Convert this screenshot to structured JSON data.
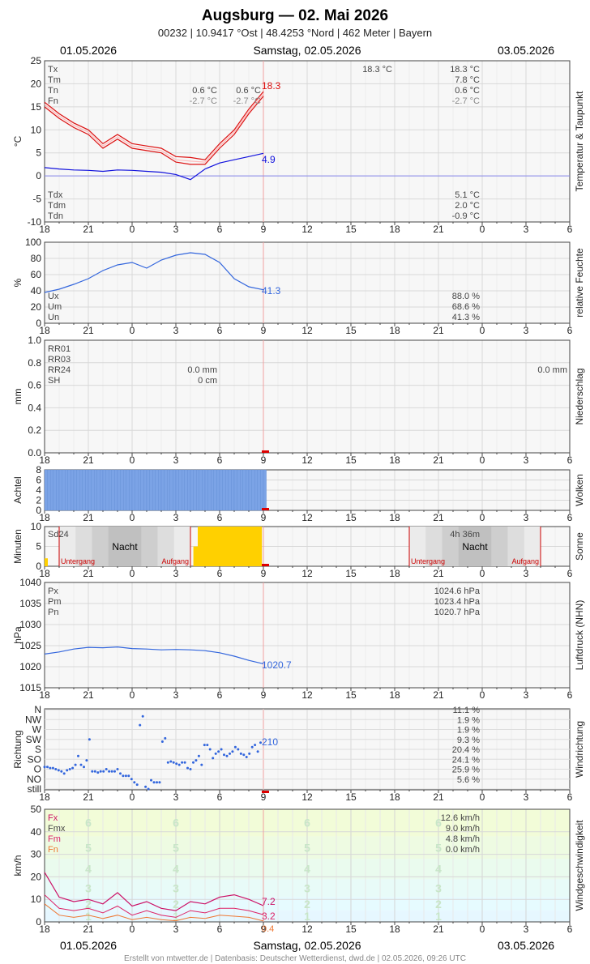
{
  "header": {
    "title": "Augsburg  —  02. Mai 2026",
    "subtitle": "00232  |  10.9417 °Ost  |  48.4253 °Nord  |  462 Meter  |  Bayern",
    "date_left": "01.05.2026",
    "date_center": "Samstag, 02.05.2026",
    "date_right": "03.05.2026"
  },
  "footer": "Erstellt von mtwetter.de | Datenbasis: Deutscher Wetterdienst, dwd.de | 02.05.2026, 09:26 UTC",
  "colors": {
    "temp": "#dd1111",
    "dew": "#1111dd",
    "blue": "#3366dd",
    "red": "#dd0000",
    "cloud": "#7ba3e6",
    "sun": "#ffd000",
    "night": "#bbbbbb",
    "gust": "#cc1166",
    "mean": "#dd2266",
    "min": "#ee7733"
  },
  "chart_data": [
    {
      "type": "line",
      "title": "Temperatur & Taupunkt",
      "ylabel": "°C",
      "ylim": [
        -10,
        25
      ],
      "x_ticks": [
        "18",
        "21",
        "0",
        "3",
        "6",
        "9",
        "12",
        "15",
        "18",
        "21",
        "0",
        "3",
        "6"
      ],
      "x_range_hours": [
        0,
        36
      ],
      "series": [
        {
          "name": "Tx",
          "x": [
            0,
            1,
            2,
            3,
            4,
            5,
            6,
            7,
            8,
            9,
            10,
            11,
            12,
            13,
            14,
            15
          ],
          "values": [
            16,
            13.5,
            11.5,
            10,
            7,
            9,
            7,
            6.5,
            6,
            4.2,
            4,
            3.5,
            7,
            10,
            14.5,
            18.3
          ]
        },
        {
          "name": "Tm",
          "x": [
            0,
            1,
            2,
            3,
            4,
            5,
            6,
            7,
            8,
            9,
            10,
            11,
            12,
            13,
            14,
            15
          ],
          "values": [
            15.5,
            13,
            11,
            9.5,
            6.5,
            8.5,
            6.5,
            6,
            5.5,
            3.5,
            3.2,
            3,
            6.5,
            9.5,
            14,
            17.8
          ]
        },
        {
          "name": "Tn",
          "x": [
            0,
            1,
            2,
            3,
            4,
            5,
            6,
            7,
            8,
            9,
            10,
            11,
            12,
            13,
            14,
            15
          ],
          "values": [
            15,
            12.5,
            10.5,
            9,
            6,
            8,
            6,
            5.5,
            5,
            3,
            2.5,
            2.5,
            6,
            9,
            13.5,
            17.3
          ]
        },
        {
          "name": "Td",
          "x": [
            0,
            1,
            2,
            3,
            4,
            5,
            6,
            7,
            8,
            9,
            10,
            11,
            12,
            13,
            14,
            15
          ],
          "values": [
            1.8,
            1.5,
            1.3,
            1.2,
            1.0,
            1.3,
            1.2,
            1.0,
            0.8,
            0.3,
            -0.8,
            1.5,
            2.8,
            3.5,
            4.2,
            4.9
          ]
        }
      ],
      "labels_left": [
        "Tx",
        "Tm",
        "Tn",
        "Fn"
      ],
      "values_day1": [
        "0.6 °C",
        "0.6 °C",
        "-2.7 °C",
        "-2.7 °C"
      ],
      "value_mid": "18.3 °C",
      "values_day2": [
        "18.3 °C",
        "7.8 °C",
        "0.6 °C",
        "-2.7 °C"
      ],
      "labels_left_low": [
        "Tdx",
        "Tdm",
        "Tdn"
      ],
      "values_day2_low": [
        "5.1 °C",
        "2.0 °C",
        "-0.9 °C"
      ],
      "last_values": [
        "18.3",
        "4.9"
      ]
    },
    {
      "type": "line",
      "title": "relative Feuchte",
      "ylabel": "%",
      "ylim": [
        0,
        100
      ],
      "series": [
        {
          "name": "U",
          "x": [
            0,
            1,
            2,
            3,
            4,
            5,
            6,
            7,
            8,
            9,
            10,
            11,
            12,
            13,
            14,
            15
          ],
          "values": [
            38,
            42,
            48,
            55,
            65,
            72,
            75,
            68,
            78,
            84,
            87,
            85,
            75,
            55,
            45,
            41.3
          ]
        }
      ],
      "labels": [
        "Ux",
        "Um",
        "Un"
      ],
      "values": [
        "88.0 %",
        "68.6 %",
        "41.3 %"
      ],
      "last_value": "41.3"
    },
    {
      "type": "bar",
      "title": "Niederschlag",
      "ylabel": "mm",
      "ylim": [
        0,
        1.0
      ],
      "y_ticks": [
        "0.0",
        "0.2",
        "0.4",
        "0.6",
        "0.8",
        "1.0"
      ],
      "labels": [
        "RR01",
        "RR03",
        "RR24",
        "SH"
      ],
      "values_day1": [
        "0.0 mm",
        "0 cm"
      ],
      "value_day2": "0.0 mm"
    },
    {
      "type": "bar",
      "title": "Wolken",
      "ylabel": "Achtel",
      "ylim": [
        0,
        8
      ],
      "x_range_hours": [
        0,
        15
      ],
      "value": 8
    },
    {
      "type": "bar",
      "title": "Sonne",
      "ylabel": "Minuten",
      "ylim": [
        0,
        10
      ],
      "label_sd": "Sd24",
      "sun_total": "4h 36m",
      "night": "Nacht",
      "sunset": "Untergang",
      "sunrise": "Aufgang"
    },
    {
      "type": "line",
      "title": "Luftdruck (NHN)",
      "ylabel": "hPa",
      "ylim": [
        1015,
        1040
      ],
      "series": [
        {
          "name": "P",
          "x": [
            0,
            1,
            2,
            3,
            4,
            5,
            6,
            7,
            8,
            9,
            10,
            11,
            12,
            13,
            14,
            15
          ],
          "values": [
            1023,
            1023.5,
            1024.2,
            1024.6,
            1024.5,
            1024.7,
            1024.3,
            1024.2,
            1024.0,
            1024.1,
            1024.0,
            1023.8,
            1023.3,
            1022.5,
            1021.5,
            1020.7
          ]
        }
      ],
      "labels": [
        "Px",
        "Pm",
        "Pn"
      ],
      "values": [
        "1024.6 hPa",
        "1023.4 hPa",
        "1020.7 hPa"
      ],
      "last_value": "1020.7"
    },
    {
      "type": "scatter",
      "title": "Windrichtung",
      "ylabel": "Richtung",
      "categories": [
        "N",
        "NW",
        "W",
        "SW",
        "S",
        "SO",
        "O",
        "NO",
        "still"
      ],
      "percentages": [
        "11.1 %",
        "1.9 %",
        "1.9 %",
        "9.3 %",
        "20.4 %",
        "24.1 %",
        "25.9 %",
        "5.6 %"
      ],
      "last_value": "210"
    },
    {
      "type": "line",
      "title": "Windgeschwindigkeit",
      "ylabel": "km/h",
      "ylim": [
        0,
        50
      ],
      "beaufort": [
        "1",
        "2",
        "3",
        "4",
        "5",
        "6"
      ],
      "series": [
        {
          "name": "Fx",
          "x": [
            0,
            1,
            2,
            3,
            4,
            5,
            6,
            7,
            8,
            9,
            10,
            11,
            12,
            13,
            14,
            15
          ],
          "values": [
            22,
            11,
            9,
            10,
            8,
            13,
            7,
            9,
            6,
            5,
            9,
            8,
            11,
            12,
            10,
            7.2
          ]
        },
        {
          "name": "Fm",
          "x": [
            0,
            1,
            2,
            3,
            4,
            5,
            6,
            7,
            8,
            9,
            10,
            11,
            12,
            13,
            14,
            15
          ],
          "values": [
            12,
            6,
            5,
            6,
            4,
            7,
            3,
            5,
            3,
            2,
            5,
            4,
            6,
            6,
            5,
            3.2
          ]
        },
        {
          "name": "Fn",
          "x": [
            0,
            1,
            2,
            3,
            4,
            5,
            6,
            7,
            8,
            9,
            10,
            11,
            12,
            13,
            14,
            15
          ],
          "values": [
            8,
            3,
            2,
            3,
            1.5,
            3,
            1,
            2,
            1,
            0.5,
            2,
            1.5,
            3,
            2.5,
            2,
            0.4
          ]
        }
      ],
      "labels": [
        "Fx",
        "Fmx",
        "Fm",
        "Fn"
      ],
      "values": [
        "12.6 km/h",
        "9.0 km/h",
        "4.8 km/h",
        "0.0 km/h"
      ],
      "last_values": [
        "7.2",
        "3.2",
        "0.4"
      ]
    }
  ]
}
